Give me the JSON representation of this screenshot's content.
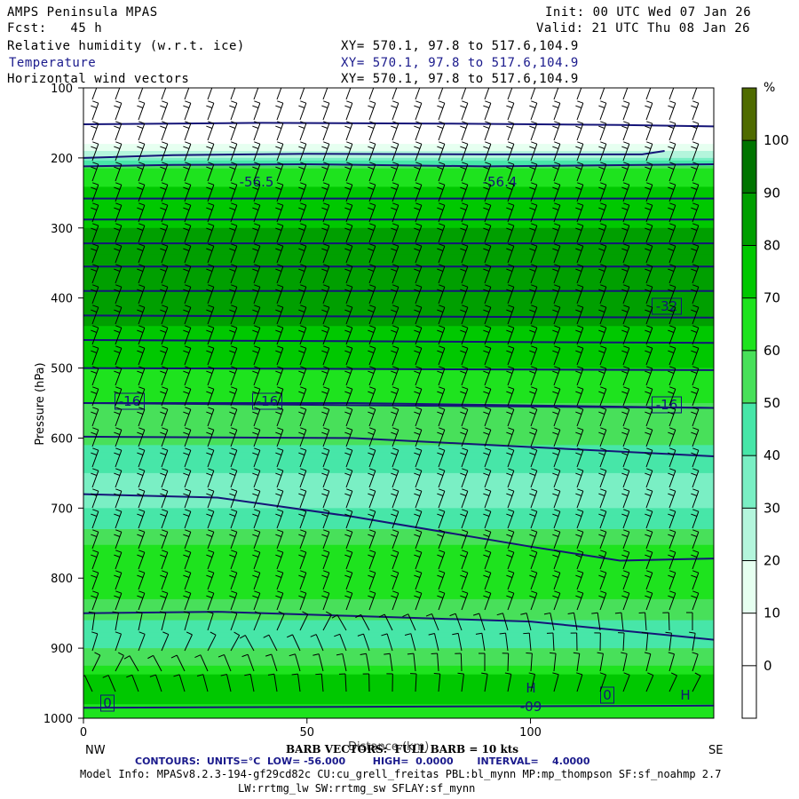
{
  "header": {
    "model": "AMPS Peninsula MPAS",
    "init": "Init: 00 UTC Wed 07 Jan 26",
    "fcst": "Fcst:   45 h",
    "valid": "Valid: 21 UTC Thu 08 Jan 26",
    "field1": "Relative humidity (w.r.t. ice)",
    "field2": "Temperature",
    "field3": "Horizontal wind vectors",
    "xy1": "XY= 570.1, 97.8 to 517.6,104.9",
    "xy2": "XY= 570.1, 97.8 to 517.6,104.9",
    "xy3": "XY= 570.1, 97.8 to 517.6,104.9"
  },
  "footer": {
    "xaxis_title": "Distance (km)",
    "barb_note": "BARB VECTORS:  FULL BARB = 10 kts",
    "contours": "CONTOURS:  UNITS=°C  LOW= -56.000        HIGH=  0.0000       INTERVAL=    4.0000",
    "model_info": "Model Info: MPASv8.2.3-194-gf29cd82c CU:cu_grell_freitas PBL:bl_mynn MP:mp_thompson SF:sf_noahmp 2.7",
    "model_info2": "LW:rrtmg_lw SW:rrtmg_sw SFLAY:sf_mynn"
  },
  "chart_data": {
    "type": "heatmap",
    "xlabel": "Distance (km)",
    "ylabel": "Pressure (hPa)",
    "xlim": [
      0,
      141
    ],
    "ylim": [
      1000,
      100
    ],
    "x_ticks": [
      0,
      50,
      100
    ],
    "y_ticks": [
      100,
      200,
      300,
      400,
      500,
      600,
      700,
      800,
      900,
      1000
    ],
    "x_end_labels": {
      "left": "NW",
      "right": "SE"
    },
    "colorbar": {
      "unit": "%",
      "levels": [
        0,
        10,
        20,
        30,
        40,
        50,
        60,
        70,
        80,
        90,
        100
      ],
      "colors": [
        "#ffffff",
        "#ffffff",
        "#e6fff0",
        "#b4f5dc",
        "#7aefc4",
        "#47e6a8",
        "#48e05a",
        "#1ee31e",
        "#00c800",
        "#009f00",
        "#007400",
        "#4f6b00"
      ]
    },
    "rh_profile": [
      {
        "p": 100,
        "rh": 5
      },
      {
        "p": 180,
        "rh": 10
      },
      {
        "p": 200,
        "rh": 30
      },
      {
        "p": 215,
        "rh": 60
      },
      {
        "p": 250,
        "rh": 72
      },
      {
        "p": 300,
        "rh": 80
      },
      {
        "p": 350,
        "rh": 88
      },
      {
        "p": 380,
        "rh": 85
      },
      {
        "p": 410,
        "rh": 88
      },
      {
        "p": 440,
        "rh": 80
      },
      {
        "p": 480,
        "rh": 74
      },
      {
        "p": 520,
        "rh": 66
      },
      {
        "p": 560,
        "rh": 58
      },
      {
        "p": 600,
        "rh": 52
      },
      {
        "p": 640,
        "rh": 42
      },
      {
        "p": 680,
        "rh": 34
      },
      {
        "p": 700,
        "rh": 38
      },
      {
        "p": 740,
        "rh": 56
      },
      {
        "p": 790,
        "rh": 68
      },
      {
        "p": 830,
        "rh": 62
      },
      {
        "p": 870,
        "rh": 44
      },
      {
        "p": 900,
        "rh": 50
      },
      {
        "p": 950,
        "rh": 74
      },
      {
        "p": 980,
        "rh": 70
      },
      {
        "p": 1000,
        "rh": 62
      }
    ],
    "temperature_contours": [
      {
        "label": "-56.5",
        "points": [
          [
            0,
            152
          ],
          [
            40,
            150
          ],
          [
            80,
            151
          ],
          [
            120,
            153
          ],
          [
            141,
            155
          ]
        ]
      },
      {
        "label": "-56.5",
        "points": [
          [
            0,
            200
          ],
          [
            20,
            196
          ],
          [
            50,
            194
          ],
          [
            90,
            195
          ],
          [
            125,
            195
          ],
          [
            130,
            190
          ]
        ]
      },
      {
        "label": "-56.4",
        "points": [
          [
            0,
            212
          ],
          [
            20,
            210
          ],
          [
            50,
            209
          ],
          [
            90,
            212
          ],
          [
            125,
            210
          ],
          [
            141,
            209
          ]
        ]
      },
      {
        "label": "",
        "points": [
          [
            0,
            258
          ],
          [
            141,
            258
          ]
        ]
      },
      {
        "label": "",
        "points": [
          [
            0,
            288
          ],
          [
            141,
            288
          ]
        ]
      },
      {
        "label": "",
        "points": [
          [
            0,
            322
          ],
          [
            141,
            322
          ]
        ]
      },
      {
        "label": "",
        "points": [
          [
            0,
            355
          ],
          [
            141,
            355
          ]
        ]
      },
      {
        "label": "",
        "points": [
          [
            0,
            390
          ],
          [
            141,
            390
          ]
        ]
      },
      {
        "label": "-32",
        "points": [
          [
            0,
            425
          ],
          [
            141,
            428
          ]
        ]
      },
      {
        "label": "",
        "points": [
          [
            0,
            460
          ],
          [
            141,
            464
          ]
        ]
      },
      {
        "label": "",
        "points": [
          [
            0,
            500
          ],
          [
            141,
            503
          ]
        ]
      },
      {
        "label": "-16",
        "points": [
          [
            0,
            550
          ],
          [
            60,
            550
          ],
          [
            141,
            557
          ]
        ]
      },
      {
        "label": "-16",
        "points": [
          [
            0,
            550
          ],
          [
            141,
            557
          ]
        ]
      },
      {
        "label": "",
        "points": [
          [
            0,
            598
          ],
          [
            60,
            600
          ],
          [
            141,
            626
          ]
        ]
      },
      {
        "label": "",
        "points": [
          [
            0,
            680
          ],
          [
            30,
            685
          ],
          [
            60,
            712
          ],
          [
            100,
            755
          ],
          [
            120,
            775
          ],
          [
            141,
            772
          ]
        ]
      },
      {
        "label": "",
        "points": [
          [
            0,
            850
          ],
          [
            30,
            848
          ],
          [
            60,
            854
          ],
          [
            100,
            862
          ],
          [
            141,
            888
          ]
        ]
      },
      {
        "label": "0",
        "points": [
          [
            0,
            985
          ],
          [
            141,
            982
          ]
        ]
      }
    ],
    "annotations": [
      "-56.5",
      "-56.4",
      "-32",
      "-16",
      "-16",
      "-16",
      "0",
      "0",
      "H",
      "H",
      "-09"
    ]
  }
}
